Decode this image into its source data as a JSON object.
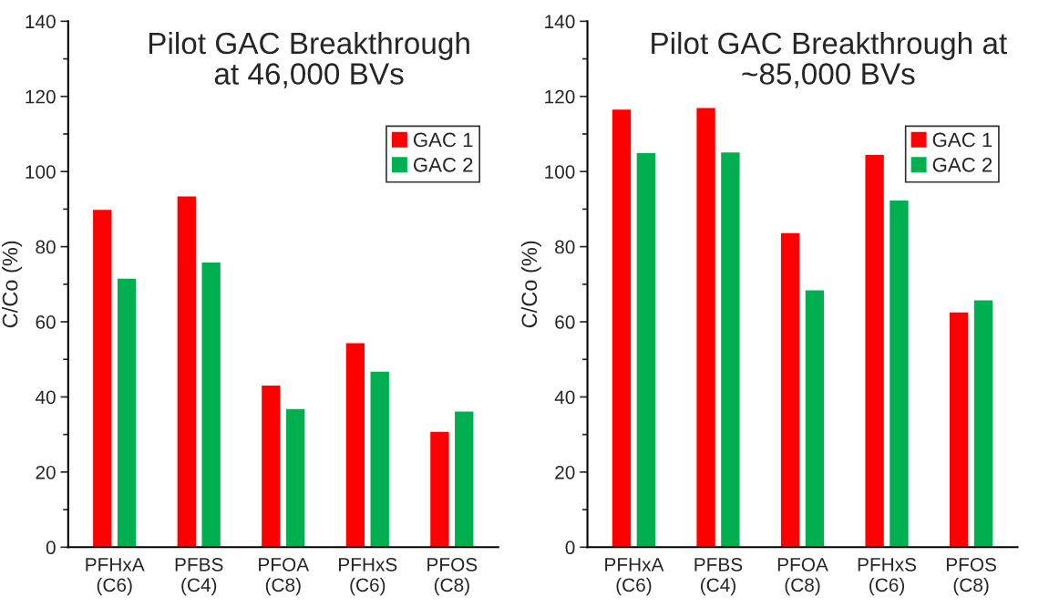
{
  "chart_data": [
    {
      "type": "bar",
      "title": "Pilot GAC Breakthrough\nat 46,000 BVs",
      "ylabel": "C/Co (%)",
      "categories": [
        "PFHxA\n(C6)",
        "PFBS\n(C4)",
        "PFOA\n(C8)",
        "PFHxS\n(C6)",
        "PFOS\n(C8)"
      ],
      "series": [
        {
          "name": "GAC 1",
          "color": "#ff0000",
          "values": [
            89.8,
            93.4,
            43.0,
            54.3,
            30.7
          ]
        },
        {
          "name": "GAC 2",
          "color": "#00b050",
          "values": [
            71.5,
            75.8,
            36.8,
            46.7,
            36.1
          ]
        }
      ],
      "ylim": [
        0,
        140
      ],
      "yticks": [
        0,
        20,
        40,
        60,
        80,
        100,
        120,
        140
      ],
      "grid": false,
      "legend": "top right"
    },
    {
      "type": "bar",
      "title": "Pilot GAC Breakthrough at\n~85,000 BVs",
      "ylabel": "C/Co (%)",
      "categories": [
        "PFHxA\n(C6)",
        "PFBS\n(C4)",
        "PFOA\n(C8)",
        "PFHxS\n(C6)",
        "PFOS\n(C8)"
      ],
      "series": [
        {
          "name": "GAC 1",
          "color": "#ff0000",
          "values": [
            116.5,
            116.9,
            83.6,
            104.4,
            62.5
          ]
        },
        {
          "name": "GAC 2",
          "color": "#00b050",
          "values": [
            104.9,
            105.1,
            68.4,
            92.3,
            65.7
          ]
        }
      ],
      "ylim": [
        0,
        140
      ],
      "yticks": [
        0,
        20,
        40,
        60,
        80,
        100,
        120,
        140
      ],
      "grid": false,
      "legend": "top right"
    }
  ]
}
